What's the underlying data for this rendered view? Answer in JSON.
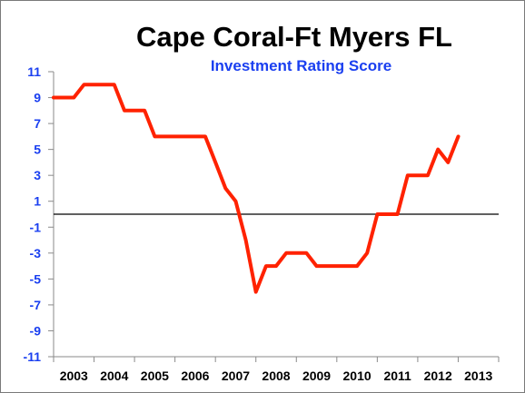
{
  "chart_data": {
    "type": "line",
    "title": "Cape Coral-Ft Myers FL",
    "subtitle": "Investment Rating Score",
    "ylim": [
      -11,
      11
    ],
    "yticks": [
      "11",
      "9",
      "7",
      "5",
      "3",
      "1",
      "-1",
      "-3",
      "-5",
      "-7",
      "-9",
      "-11"
    ],
    "ytick_values": [
      11,
      9,
      7,
      5,
      3,
      1,
      -1,
      -3,
      -5,
      -7,
      -9,
      -11
    ],
    "categories": [
      "2003",
      "2004",
      "2005",
      "2006",
      "2007",
      "2008",
      "2009",
      "2010",
      "2011",
      "2012",
      "2013"
    ],
    "reference_line": 0,
    "series": [
      {
        "color": "#ff2200",
        "points": [
          [
            2002.5,
            9
          ],
          [
            2003.0,
            9
          ],
          [
            2003.25,
            10
          ],
          [
            2003.5,
            10
          ],
          [
            2004.0,
            10
          ],
          [
            2004.25,
            8
          ],
          [
            2004.75,
            8
          ],
          [
            2005.0,
            6
          ],
          [
            2005.5,
            6
          ],
          [
            2006.25,
            6
          ],
          [
            2006.5,
            4
          ],
          [
            2006.75,
            2
          ],
          [
            2007.0,
            1
          ],
          [
            2007.25,
            -2
          ],
          [
            2007.5,
            -6
          ],
          [
            2007.75,
            -4
          ],
          [
            2008.0,
            -4
          ],
          [
            2008.25,
            -3
          ],
          [
            2008.75,
            -3
          ],
          [
            2009.0,
            -4
          ],
          [
            2009.5,
            -4
          ],
          [
            2010.0,
            -4
          ],
          [
            2010.25,
            -3
          ],
          [
            2010.5,
            0
          ],
          [
            2011.0,
            0
          ],
          [
            2011.25,
            3
          ],
          [
            2011.75,
            3
          ],
          [
            2012.0,
            5
          ],
          [
            2012.25,
            4
          ],
          [
            2012.5,
            6
          ]
        ]
      }
    ],
    "grid": false,
    "colors": {
      "axis_labels": "#1a3ff0",
      "ytick_labels": "#1a3ff0",
      "series": "#ff2200",
      "reference_line": "#000000"
    }
  }
}
